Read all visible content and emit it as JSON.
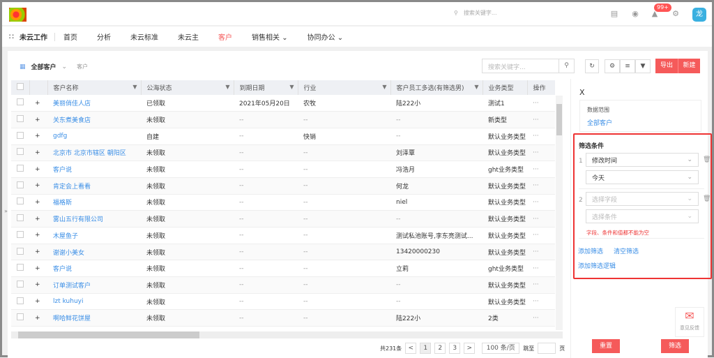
{
  "header": {
    "search_placeholder": "搜索关键字...",
    "notification_count": "99+",
    "avatar_text": "龙"
  },
  "nav": {
    "app_name": "未云工作",
    "items": [
      "首页",
      "分析",
      "未云标准",
      "未云主",
      "客户",
      "销售相关",
      "协同办公"
    ],
    "active": "客户",
    "accent": "#f55a5a"
  },
  "toolbar": {
    "view": "全部客户",
    "breadcrumb": "客户",
    "search_placeholder": "搜索关键字...",
    "export": "导出",
    "new": "新建"
  },
  "table": {
    "columns": [
      "客户名称",
      "公海状态",
      "到期日期",
      "行业",
      "客户员工多选(有筛选男)",
      "业务类型",
      "操作"
    ],
    "rows": [
      [
        "美丽俏佳人店",
        "已领取",
        "2021年05月20日",
        "农牧",
        "陆222小",
        "测试1"
      ],
      [
        "关东煮美食店",
        "未领取",
        "--",
        "--",
        "--",
        "新类型"
      ],
      [
        "gdfg",
        "自建",
        "--",
        "快销",
        "--",
        "默认业务类型"
      ],
      [
        "北京市 北京市辖区 朝阳区",
        "未领取",
        "--",
        "--",
        "刘泽覃",
        "默认业务类型"
      ],
      [
        "客户说",
        "未领取",
        "--",
        "--",
        "冯浩月",
        "ght业务类型"
      ],
      [
        "肯定会上看看",
        "未领取",
        "--",
        "--",
        "何龙",
        "默认业务类型"
      ],
      [
        "福格斯",
        "未领取",
        "--",
        "--",
        "niel",
        "默认业务类型"
      ],
      [
        "雾山五行有限公司",
        "未领取",
        "--",
        "--",
        "--",
        "默认业务类型"
      ],
      [
        "木屋鱼子",
        "未领取",
        "--",
        "--",
        "测试私池账号,李东亮测试...",
        "默认业务类型"
      ],
      [
        "谢谢小美女",
        "未领取",
        "--",
        "--",
        "13420000230",
        "默认业务类型"
      ],
      [
        "客户说",
        "未领取",
        "--",
        "--",
        "立莉",
        "ght业务类型"
      ],
      [
        "订单测试客户",
        "未领取",
        "--",
        "--",
        "--",
        "默认业务类型"
      ],
      [
        "lzt kuhuyi",
        "未领取",
        "--",
        "--",
        "--",
        "默认业务类型"
      ],
      [
        "啊哈鲜花饼屋",
        "未领取",
        "--",
        "--",
        "陆222小",
        "2类"
      ]
    ],
    "ops": "···"
  },
  "pagination": {
    "total": "共231条",
    "pages": [
      "1",
      "2",
      "3"
    ],
    "current": "1",
    "page_size": "100 条/页",
    "jump": "跳至",
    "page_unit": "页"
  },
  "panel": {
    "close": "X",
    "scope_label": "数据范围",
    "scope_value": "全部客户",
    "filter_title": "筛选条件",
    "filters": [
      {
        "index": "1",
        "field": "修改时间",
        "condition": "今天"
      },
      {
        "index": "2",
        "field": "选择字段",
        "condition": "选择条件"
      }
    ],
    "error": "字段、条件和值都不能为空",
    "add_filter": "添加筛选",
    "clear_filter": "清空筛选",
    "add_logic": "添加筛选逻辑",
    "reset": "重置",
    "apply": "筛选",
    "feedback": "意见反馈"
  }
}
